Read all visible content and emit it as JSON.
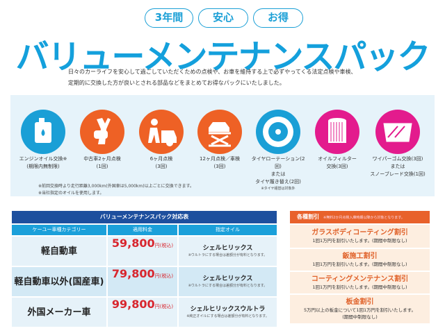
{
  "badges": [
    "3年間",
    "安心",
    "お得"
  ],
  "title": "バリューメンテナンスパック",
  "intro": [
    "日々のカーライフを安心して過ごしていただくための点検や、お車を維持する上で必ずやってくる法定点検や車検、",
    "定期的に交換した方が良いとされる部品などをまとめてお得なパックにいたしました。"
  ],
  "services": [
    {
      "icon": "oil-can-icon",
      "color": "#1a9fd6",
      "lines": [
        "エンジンオイル交換※",
        "(期限内無制限)"
      ]
    },
    {
      "icon": "wrench-icon",
      "color": "#ee6125",
      "lines": [
        "中古車2ヶ月点検",
        "(1回)"
      ]
    },
    {
      "icon": "mechanic-icon",
      "color": "#ee6125",
      "lines": [
        "6ヶ月点検",
        "(3回)"
      ]
    },
    {
      "icon": "car-lift-icon",
      "color": "#ee6125",
      "lines": [
        "12ヶ月点検／車検",
        "(3回)"
      ]
    },
    {
      "icon": "tire-icon",
      "color": "#1a9fd6",
      "lines": [
        "タイヤローテーション(2回)",
        "または",
        "タイヤ履き替え(2回)"
      ]
    },
    {
      "icon": "oil-filter-icon",
      "color": "#e31b8d",
      "lines": [
        "オイルフィルター",
        "交換(3回)"
      ]
    },
    {
      "icon": "wiper-icon",
      "color": "#e31b8d",
      "lines": [
        "ワイパーゴム交換(3回)",
        "または",
        "スノーブレード交換(1回)"
      ]
    }
  ],
  "tire_note": "※タイヤ組替は対象外",
  "notes": [
    "※前回交換時より走行距離3,000km(外国車は5,000km)以上ごとに交換できます。",
    "※当社指定のオイルを使用します。"
  ],
  "table": {
    "caption": "バリューメンテナンスパック対応表",
    "headers": [
      "ケーユー車種カテゴリー",
      "適用料金",
      "指定オイル"
    ],
    "rows": [
      {
        "category": "軽自動車",
        "price": "59,800",
        "unit": "円(税込)",
        "oil": "シェルヒリックス",
        "oil_note": "※ウルトラにする場合は差額分が有料となります。",
        "bg": "#e6f2f9"
      },
      {
        "category": "軽自動車以外(国産車)",
        "price": "79,800",
        "unit": "円(税込)",
        "oil": "シェルヒリックス",
        "oil_note": "※ウルトラにする場合は差額分が有料となります。",
        "bg": "#d3e9f5"
      },
      {
        "category": "外国メーカー車",
        "price": "99,800",
        "unit": "円(税込)",
        "oil": "シェルヒリックスウルトラ",
        "oil_note": "※純正オイルにする場合は差額分が有料となります。",
        "bg": "#e6f2f9"
      }
    ]
  },
  "discounts": {
    "caption": "各種割引",
    "caption_note": "※無料2か月点検入庫時期以降から対象となります。",
    "items": [
      {
        "title": "ガラスボディコーティング割引",
        "text": [
          "1回1万円を割引いたします。(期間中制限なし)"
        ]
      },
      {
        "title": "鈑施工割引",
        "text": [
          "1回1万円を割引いたします。(期間中制限なし)"
        ]
      },
      {
        "title": "コーティングメンテナンス割引",
        "text": [
          "1回1万円を割引いたします。(期間中制限なし)"
        ]
      },
      {
        "title": "板金割引",
        "text": [
          "5万円以上の板金について1回1万円を割引いたします。",
          "(期間中制限なし)"
        ]
      }
    ]
  }
}
